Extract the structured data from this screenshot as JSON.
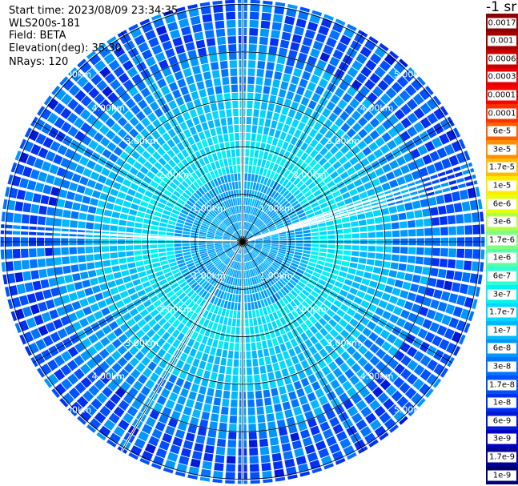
{
  "header": {
    "start_time": "Start time: 2023/08/09 23:34:35",
    "instrument": "WLS200s-181",
    "field": "Field: BETA",
    "elevation": "Elevation(deg): 35.30",
    "nrays": "NRays: 120"
  },
  "legend": {
    "unit": "-1 sr",
    "entries": [
      {
        "label": "0.0017",
        "color": "#8b0000"
      },
      {
        "label": "0.001",
        "color": "#a50000"
      },
      {
        "label": "0.0006",
        "color": "#c80000"
      },
      {
        "label": "0.0003",
        "color": "#e60000"
      },
      {
        "label": "0.00017",
        "color": "#ff0000"
      },
      {
        "label": "0.0001",
        "color": "#ff3000"
      },
      {
        "label": "6e-5",
        "color": "#ff6000"
      },
      {
        "label": "3e-5",
        "color": "#ff9000"
      },
      {
        "label": "1.7e-5",
        "color": "#ffbf00"
      },
      {
        "label": "1e-5",
        "color": "#ffec00"
      },
      {
        "label": "6e-6",
        "color": "#e6ff10"
      },
      {
        "label": "3e-6",
        "color": "#b0ff48"
      },
      {
        "label": "1.7e-6",
        "color": "#80ff80"
      },
      {
        "label": "1e-6",
        "color": "#58ffa8"
      },
      {
        "label": "6e-7",
        "color": "#30ffd0"
      },
      {
        "label": "3e-7",
        "color": "#00f2f2"
      },
      {
        "label": "1.7e-7",
        "color": "#00d8ff"
      },
      {
        "label": "1e-7",
        "color": "#00b8ff"
      },
      {
        "label": "6e-8",
        "color": "#0098ff"
      },
      {
        "label": "3e-8",
        "color": "#0074ff"
      },
      {
        "label": "1.7e-8",
        "color": "#0050ff"
      },
      {
        "label": "1e-8",
        "color": "#0030f0"
      },
      {
        "label": "6e-9",
        "color": "#0018d8"
      },
      {
        "label": "3e-9",
        "color": "#0000c0"
      },
      {
        "label": "1.7e-9",
        "color": "#00009a"
      },
      {
        "label": "1e-9",
        "color": "#000070"
      }
    ]
  },
  "range_rings": [
    {
      "range_km": 1.0,
      "label": "1.00km"
    },
    {
      "range_km": 2.0,
      "label": "2.00km"
    },
    {
      "range_km": 3.0,
      "label": "3.00km"
    },
    {
      "range_km": 4.0,
      "label": "4.00km"
    },
    {
      "range_km": 5.0,
      "label": "5.00km"
    }
  ],
  "scan": {
    "n_rays": 120,
    "max_range_km": 5.1,
    "spokes_every_deg": 30,
    "gap_azimuths_deg": [
      0,
      72,
      75,
      180,
      210,
      273
    ]
  }
}
